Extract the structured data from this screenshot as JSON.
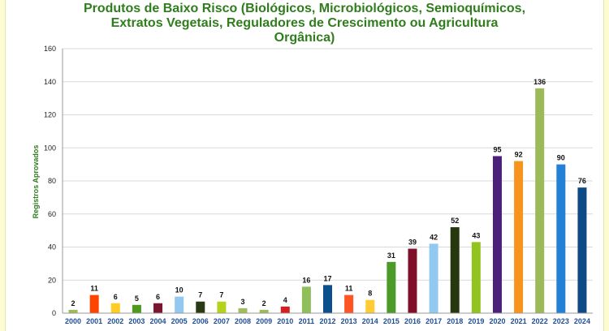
{
  "chart_data": {
    "type": "bar",
    "title_lines": [
      "Produtos de Baixo Risco (Biológicos, Microbiológicos, Semioquímicos,",
      "Extratos Vegetais, Reguladores de Crescimento ou Agricultura",
      "Orgânica)"
    ],
    "xlabel": "",
    "ylabel": "Registros Aprovados",
    "ylim": [
      0,
      160
    ],
    "yticks": [
      0,
      20,
      40,
      60,
      80,
      100,
      120,
      140,
      160
    ],
    "grid": true,
    "legend": "none",
    "categories": [
      "2000",
      "2001",
      "2002",
      "2003",
      "2004",
      "2005",
      "2006",
      "2007",
      "2008",
      "2009",
      "2010",
      "2011",
      "2012",
      "2013",
      "2014",
      "2015",
      "2016",
      "2017",
      "2018",
      "2019",
      "2020",
      "2021",
      "2022",
      "2023",
      "2024"
    ],
    "values": [
      2,
      11,
      6,
      5,
      6,
      10,
      7,
      7,
      3,
      2,
      4,
      16,
      17,
      11,
      8,
      31,
      39,
      42,
      52,
      43,
      95,
      92,
      136,
      90,
      76
    ],
    "colors": [
      "#9bbb59",
      "#ff4400",
      "#ffcc22",
      "#4e9a1e",
      "#7b1530",
      "#93c9f0",
      "#2b3a12",
      "#b6d21a",
      "#a3bd5c",
      "#9bbb59",
      "#d21f1f",
      "#8fbf5a",
      "#0b4f8c",
      "#ff5522",
      "#ffcc33",
      "#4c9a2a",
      "#80102a",
      "#93c9f0",
      "#27380e",
      "#92c420",
      "#4b1f7a",
      "#f7941d",
      "#9bbb59",
      "#2281d6",
      "#0e4a86"
    ]
  }
}
